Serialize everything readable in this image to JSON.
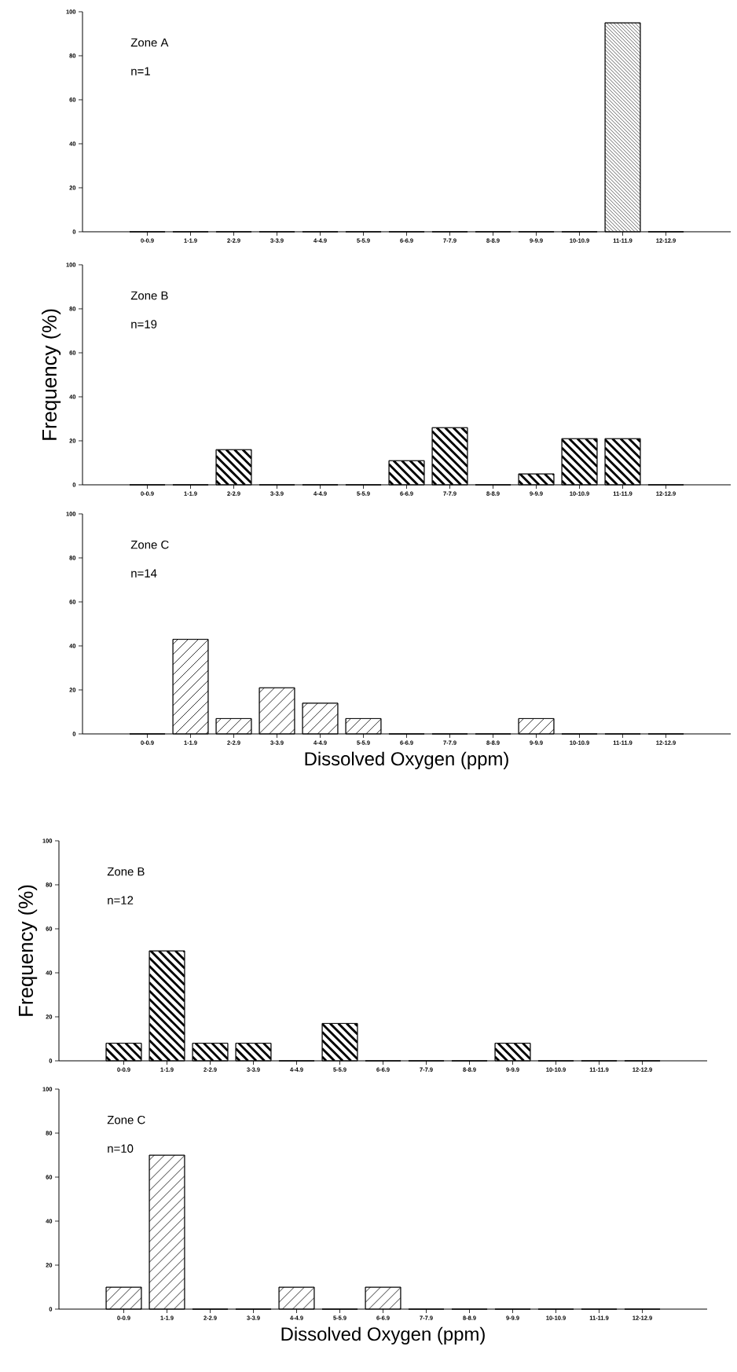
{
  "chart_data": [
    {
      "type": "bar",
      "categories": [
        "0-0.9",
        "1-1.9",
        "2-2.9",
        "3-3.9",
        "4-4.9",
        "5-5.9",
        "6-6.9",
        "7-7.9",
        "8-8.9",
        "9-9.9",
        "10-10.9",
        "11-11.9",
        "12-12.9"
      ],
      "values": [
        0,
        0,
        0,
        0,
        0,
        0,
        0,
        0,
        0,
        0,
        0,
        95,
        0
      ],
      "color": "#000000",
      "ylim": [
        0,
        100
      ],
      "yticks": [
        0,
        20,
        40,
        60,
        80,
        100
      ],
      "annotations": [
        "Zone A",
        "n=1"
      ]
    },
    {
      "type": "bar",
      "categories": [
        "0-0.9",
        "1-1.9",
        "2-2.9",
        "3-3.9",
        "4-4.9",
        "5-5.9",
        "6-6.9",
        "7-7.9",
        "8-8.9",
        "9-9.9",
        "10-10.9",
        "11-11.9",
        "12-12.9"
      ],
      "values": [
        0,
        0,
        16,
        0,
        0,
        0,
        11,
        26,
        0,
        5,
        21,
        21,
        0
      ],
      "color": "#000000",
      "ylim": [
        0,
        100
      ],
      "yticks": [
        0,
        20,
        40,
        60,
        80,
        100
      ],
      "ylabel": "Frequency (%)",
      "annotations": [
        "Zone B",
        "n=19"
      ]
    },
    {
      "type": "bar",
      "categories": [
        "0-0.9",
        "1-1.9",
        "2-2.9",
        "3-3.9",
        "4-4.9",
        "5-5.9",
        "6-6.9",
        "7-7.9",
        "8-8.9",
        "9-9.9",
        "10-10.9",
        "11-11.9",
        "12-12.9"
      ],
      "values": [
        0,
        43,
        7,
        21,
        14,
        7,
        0,
        0,
        0,
        7,
        0,
        0,
        0
      ],
      "color": "#000000",
      "ylim": [
        0,
        100
      ],
      "yticks": [
        0,
        20,
        40,
        60,
        80,
        100
      ],
      "xlabel": "Dissolved Oxygen (ppm)",
      "annotations": [
        "Zone C",
        "n=14"
      ]
    },
    {
      "type": "bar",
      "categories": [
        "0-0.9",
        "1-1.9",
        "2-2.9",
        "3-3.9",
        "4-4.9",
        "5-5.9",
        "6-6.9",
        "7-7.9",
        "8-8.9",
        "9-9.9",
        "10-10.9",
        "11-11.9",
        "12-12.9"
      ],
      "values": [
        8,
        50,
        8,
        8,
        0,
        17,
        0,
        0,
        0,
        8,
        0,
        0,
        0
      ],
      "color": "#000000",
      "ylim": [
        0,
        100
      ],
      "yticks": [
        0,
        20,
        40,
        60,
        80,
        100
      ],
      "ylabel": "Frequency (%)",
      "annotations": [
        "Zone B",
        "n=12"
      ]
    },
    {
      "type": "bar",
      "categories": [
        "0-0.9",
        "1-1.9",
        "2-2.9",
        "3-3.9",
        "4-4.9",
        "5-5.9",
        "6-6.9",
        "7-7.9",
        "8-8.9",
        "9-9.9",
        "10-10.9",
        "11-11.9",
        "12-12.9"
      ],
      "values": [
        10,
        70,
        0,
        0,
        10,
        0,
        10,
        0,
        0,
        0,
        0,
        0,
        0
      ],
      "color": "#000000",
      "ylim": [
        0,
        100
      ],
      "yticks": [
        0,
        20,
        40,
        60,
        80,
        100
      ],
      "xlabel": "Dissolved Oxygen (ppm)",
      "annotations": [
        "Zone C",
        "n=10"
      ]
    }
  ]
}
